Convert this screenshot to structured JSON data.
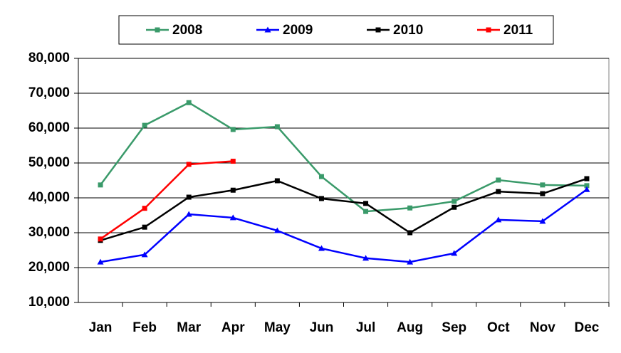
{
  "chart_data": {
    "type": "line",
    "categories": [
      "Jan",
      "Feb",
      "Mar",
      "Apr",
      "May",
      "Jun",
      "Jul",
      "Aug",
      "Sep",
      "Oct",
      "Nov",
      "Dec"
    ],
    "series": [
      {
        "name": "2008",
        "color": "#3a9a6a",
        "marker": "square",
        "values": [
          43700,
          60800,
          67300,
          59600,
          60400,
          46100,
          36100,
          37100,
          39000,
          45100,
          43700,
          43500
        ]
      },
      {
        "name": "2009",
        "color": "#0000ff",
        "marker": "triangle",
        "values": [
          21600,
          23700,
          35300,
          34300,
          30600,
          25500,
          22700,
          21600,
          24100,
          33700,
          33300,
          42400
        ]
      },
      {
        "name": "2010",
        "color": "#000000",
        "marker": "square",
        "values": [
          27800,
          31600,
          40200,
          42200,
          44900,
          39800,
          38400,
          30000,
          37300,
          41800,
          41200,
          45500
        ]
      },
      {
        "name": "2011",
        "color": "#ff0000",
        "marker": "square",
        "values": [
          28200,
          37000,
          49600,
          50500,
          null,
          null,
          null,
          null,
          null,
          null,
          null,
          null
        ]
      }
    ],
    "ylim": [
      10000,
      80000
    ],
    "yticks": [
      {
        "value": 10000,
        "label": "10,000"
      },
      {
        "value": 20000,
        "label": "20,000"
      },
      {
        "value": 30000,
        "label": "30,000"
      },
      {
        "value": 40000,
        "label": "40,000"
      },
      {
        "value": 50000,
        "label": "50,000"
      },
      {
        "value": 60000,
        "label": "60,000"
      },
      {
        "value": 70000,
        "label": "70,000"
      },
      {
        "value": 80000,
        "label": "80,000"
      }
    ],
    "grid": true,
    "legend": "top"
  }
}
